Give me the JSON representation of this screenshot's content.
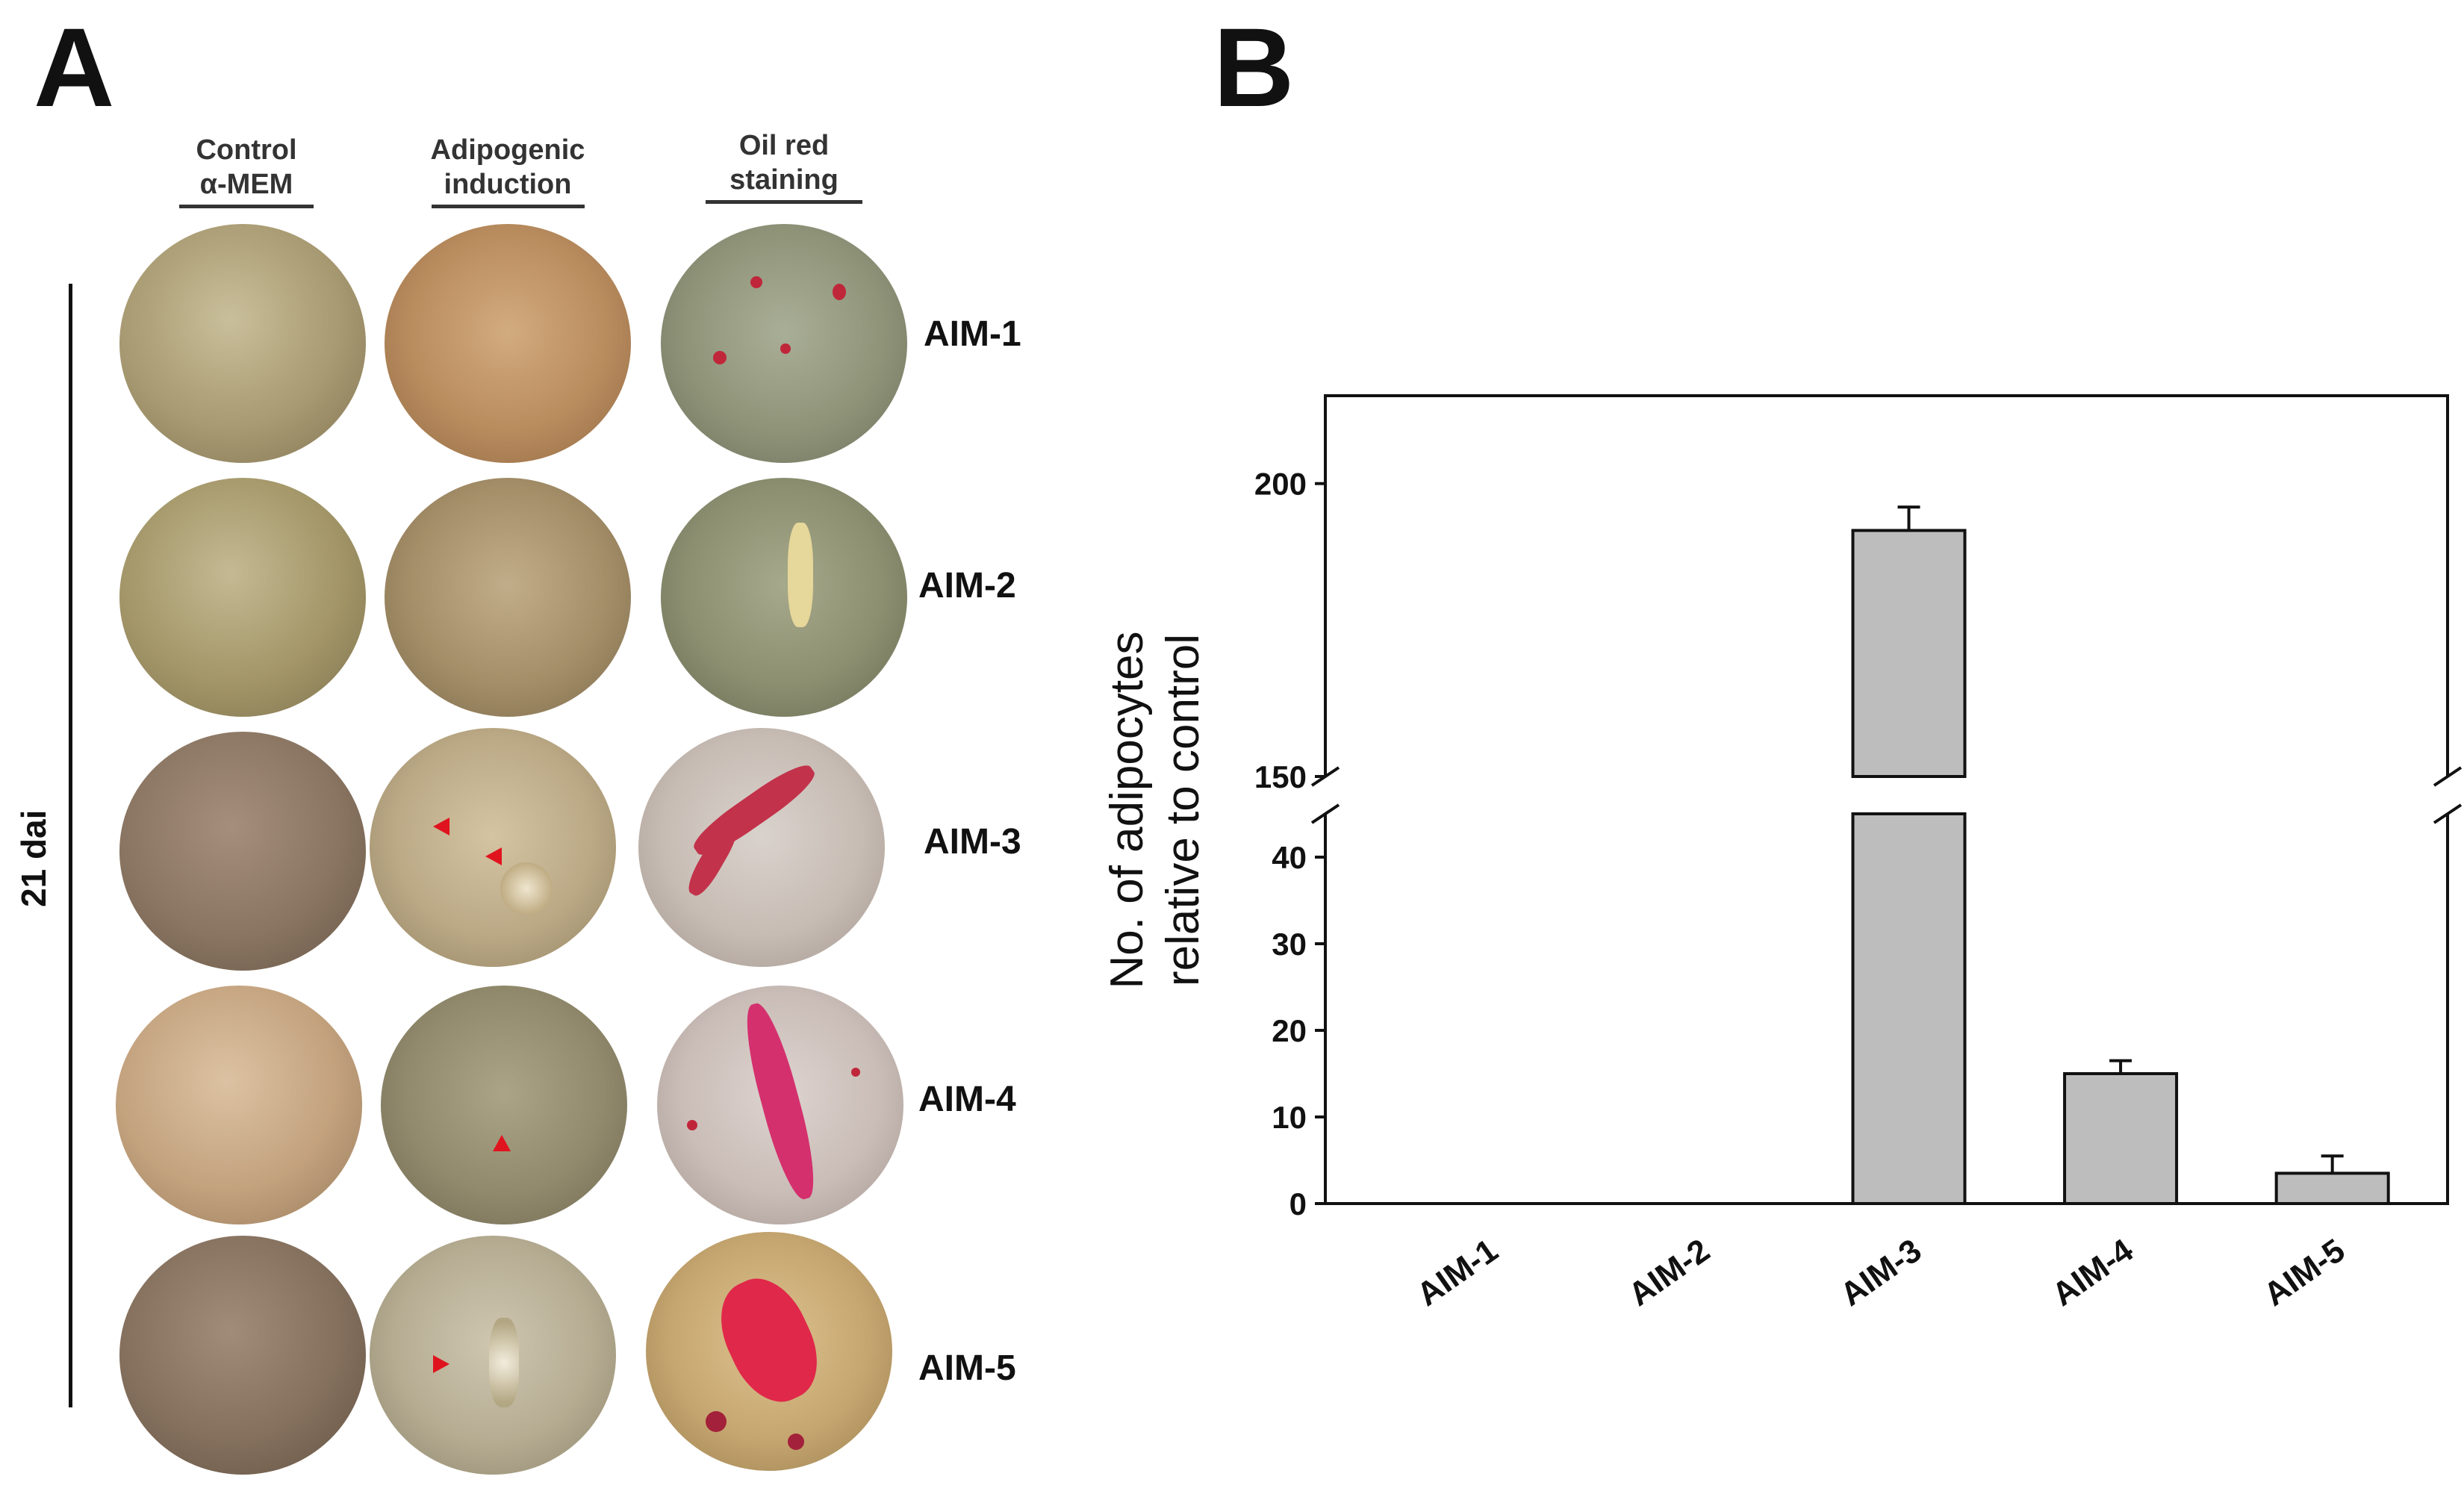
{
  "panel_a": {
    "letter": "A",
    "headers": {
      "control_line1": "Control",
      "control_line2": "α-MEM",
      "adipogenic_line1": "Adipogenic",
      "adipogenic_line2": "induction",
      "oilred_line1": "Oil red",
      "oilred_line2": "staining"
    },
    "time_label": "21 dai",
    "rows": [
      "AIM-1",
      "AIM-2",
      "AIM-3",
      "AIM-4",
      "AIM-5"
    ]
  },
  "panel_b": {
    "letter": "B"
  },
  "chart_data": {
    "type": "bar",
    "categories": [
      "AIM-1",
      "AIM-2",
      "AIM-3",
      "AIM-4",
      "AIM-5"
    ],
    "values": [
      0,
      0,
      192,
      15,
      3.5
    ],
    "errors": [
      0,
      0,
      4,
      1.5,
      2
    ],
    "ylabel_line1": "No. of adipocytes",
    "ylabel_line2": "relative to control",
    "xlabel": "",
    "ylim": [
      0,
      215
    ],
    "axis_break": [
      45,
      150
    ],
    "lower_ticks": [
      0,
      10,
      20,
      30,
      40
    ],
    "upper_ticks": [
      150,
      200
    ],
    "bar_color": "#bdbdbd",
    "grid": false
  }
}
